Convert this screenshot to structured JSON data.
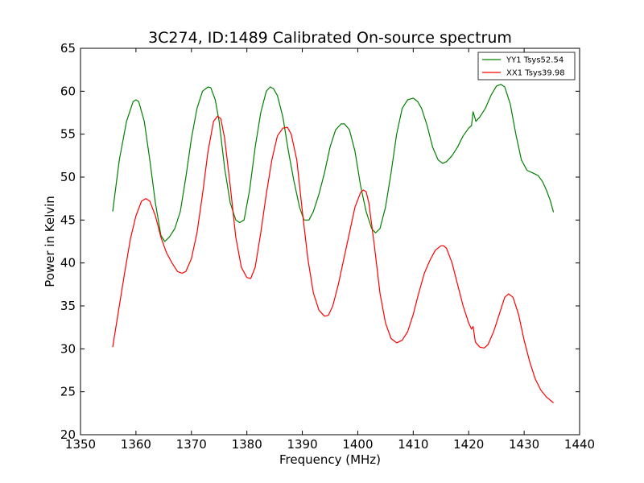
{
  "chart_data": {
    "type": "line",
    "title": "3C274, ID:1489 Calibrated On-source spectrum",
    "xlabel": "Frequency (MHz)",
    "ylabel": "Power in Kelvin",
    "xlim": [
      1350,
      1440
    ],
    "ylim": [
      20,
      65
    ],
    "xticks": [
      1350,
      1360,
      1370,
      1380,
      1390,
      1400,
      1410,
      1420,
      1430,
      1440
    ],
    "yticks": [
      20,
      25,
      30,
      35,
      40,
      45,
      50,
      55,
      60,
      65
    ],
    "grid": false,
    "legend": "top-right",
    "series": [
      {
        "name": "YY1 Tsys52.54",
        "color": "#008000",
        "x": [
          1355.8,
          1357.0,
          1358.3,
          1359.5,
          1360.0,
          1360.5,
          1361.5,
          1362.5,
          1363.5,
          1364.5,
          1365.2,
          1366.0,
          1367.0,
          1368.0,
          1369.0,
          1370.0,
          1371.0,
          1372.0,
          1373.0,
          1373.5,
          1374.3,
          1375.0,
          1376.0,
          1377.0,
          1378.0,
          1378.7,
          1379.5,
          1380.5,
          1381.5,
          1382.5,
          1383.5,
          1384.2,
          1384.8,
          1385.5,
          1386.5,
          1387.5,
          1388.5,
          1389.5,
          1390.3,
          1391.2,
          1392.0,
          1393.0,
          1394.0,
          1395.0,
          1396.0,
          1397.0,
          1397.6,
          1398.5,
          1399.5,
          1400.5,
          1401.5,
          1402.5,
          1403.2,
          1404.0,
          1405.0,
          1406.0,
          1407.0,
          1408.0,
          1409.0,
          1410.0,
          1410.8,
          1411.5,
          1412.5,
          1413.5,
          1414.5,
          1415.3,
          1416.0,
          1417.0,
          1418.0,
          1419.0,
          1420.0,
          1420.5,
          1420.8,
          1421.3,
          1422.0,
          1423.0,
          1424.0,
          1425.0,
          1425.8,
          1426.5,
          1427.5,
          1428.5,
          1429.5,
          1430.5,
          1431.5,
          1432.5,
          1433.3,
          1434.0,
          1434.7,
          1435.3
        ],
        "values": [
          46.0,
          52.0,
          56.5,
          58.8,
          59.0,
          58.8,
          56.5,
          52.0,
          47.0,
          43.2,
          42.5,
          43.0,
          44.0,
          46.0,
          50.0,
          54.5,
          58.0,
          60.0,
          60.5,
          60.4,
          59.0,
          56.5,
          51.0,
          47.0,
          45.0,
          44.7,
          45.0,
          48.5,
          53.5,
          57.5,
          60.0,
          60.5,
          60.3,
          59.5,
          57.0,
          53.0,
          49.5,
          46.5,
          45.0,
          45.0,
          46.0,
          48.0,
          50.5,
          53.5,
          55.5,
          56.2,
          56.2,
          55.5,
          53.0,
          49.0,
          46.0,
          44.0,
          43.5,
          44.0,
          46.5,
          50.5,
          55.0,
          58.0,
          59.0,
          59.2,
          58.8,
          58.0,
          56.0,
          53.5,
          52.0,
          51.6,
          51.8,
          52.5,
          53.5,
          54.8,
          55.7,
          56.0,
          57.6,
          56.5,
          57.0,
          58.0,
          59.5,
          60.6,
          60.8,
          60.5,
          58.5,
          55.0,
          52.0,
          50.8,
          50.5,
          50.2,
          49.5,
          48.5,
          47.3,
          45.9
        ]
      },
      {
        "name": "XX1 Tsys39.98",
        "color": "#ff0000",
        "x": [
          1355.8,
          1357.0,
          1358.0,
          1359.0,
          1360.0,
          1361.0,
          1361.8,
          1362.5,
          1363.5,
          1364.5,
          1365.5,
          1366.5,
          1367.5,
          1368.3,
          1369.0,
          1370.0,
          1371.0,
          1372.0,
          1373.0,
          1374.0,
          1374.7,
          1375.3,
          1376.0,
          1377.0,
          1378.0,
          1379.0,
          1380.0,
          1380.7,
          1381.5,
          1382.5,
          1383.5,
          1384.5,
          1385.5,
          1386.5,
          1387.3,
          1388.0,
          1389.0,
          1390.0,
          1391.0,
          1392.0,
          1393.0,
          1394.0,
          1394.7,
          1395.5,
          1396.5,
          1397.5,
          1398.5,
          1399.5,
          1400.5,
          1401.0,
          1401.5,
          1402.0,
          1403.0,
          1404.0,
          1405.0,
          1406.0,
          1407.0,
          1408.0,
          1409.0,
          1410.0,
          1411.0,
          1412.0,
          1413.0,
          1414.0,
          1415.0,
          1415.5,
          1416.0,
          1417.0,
          1418.0,
          1419.0,
          1420.0,
          1420.5,
          1420.8,
          1421.2,
          1422.0,
          1422.8,
          1423.5,
          1424.5,
          1425.5,
          1426.5,
          1427.2,
          1428.0,
          1429.0,
          1430.0,
          1431.0,
          1432.0,
          1433.0,
          1434.0,
          1435.3
        ],
        "values": [
          30.2,
          35.0,
          39.0,
          42.8,
          45.5,
          47.2,
          47.5,
          47.2,
          45.5,
          43.0,
          41.2,
          40.0,
          39.0,
          38.8,
          39.0,
          40.5,
          43.5,
          48.0,
          53.0,
          56.5,
          57.1,
          56.8,
          54.5,
          49.0,
          43.0,
          39.5,
          38.3,
          38.2,
          39.5,
          43.5,
          48.0,
          52.0,
          54.8,
          55.7,
          55.8,
          55.0,
          52.0,
          46.0,
          40.5,
          36.5,
          34.5,
          33.8,
          33.9,
          35.0,
          37.5,
          40.5,
          43.5,
          46.5,
          48.2,
          48.5,
          48.3,
          47.0,
          42.0,
          36.5,
          33.0,
          31.2,
          30.7,
          31.0,
          32.0,
          34.0,
          36.5,
          38.8,
          40.3,
          41.5,
          42.0,
          42.0,
          41.7,
          40.0,
          37.5,
          35.0,
          33.0,
          32.3,
          32.6,
          30.8,
          30.2,
          30.1,
          30.5,
          32.0,
          34.0,
          36.0,
          36.4,
          36.0,
          34.0,
          31.0,
          28.5,
          26.5,
          25.2,
          24.4,
          23.7
        ]
      }
    ]
  }
}
